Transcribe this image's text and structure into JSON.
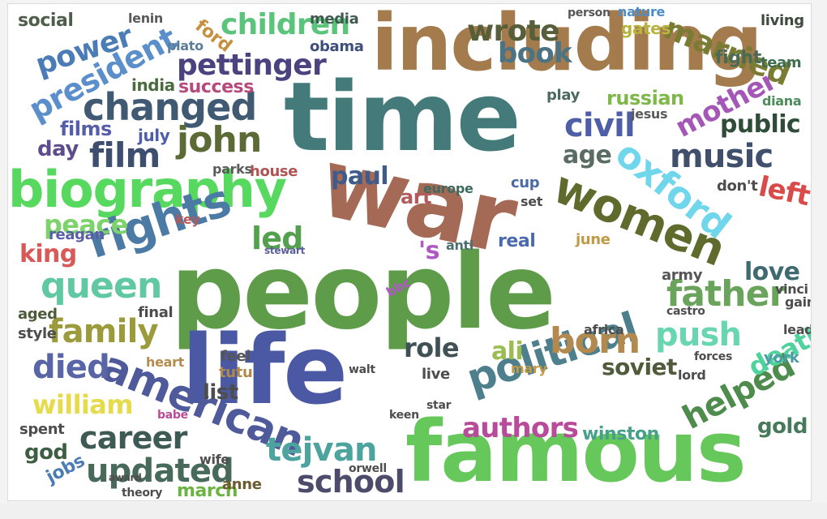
{
  "wordcloud": {
    "words": [
      "people",
      "famous",
      "war",
      "time",
      "life",
      "including",
      "biography",
      "american",
      "political",
      "women",
      "oxford",
      "rights",
      "born",
      "queen",
      "changed",
      "john",
      "pettinger",
      "father",
      "president",
      "push",
      "helped",
      "music",
      "mother",
      "civil",
      "married",
      "film",
      "updated",
      "family",
      "died",
      "william",
      "career",
      "authors",
      "tejvan",
      "school",
      "children",
      "wrote",
      "book",
      "power",
      "led",
      "love",
      "peace",
      "age",
      "public",
      "left",
      "death",
      "role",
      "ali",
      "soviet",
      "paul",
      "king",
      "films",
      "day",
      "social",
      "march",
      "jobs",
      "god",
      "winston",
      "gold",
      "list",
      "art",
      "russian",
      "success",
      "ford",
      "india",
      "obama",
      "lenin",
      "anne",
      "plato",
      "media",
      "gates",
      "fight",
      "team",
      "living",
      "nature",
      "person",
      "reagan",
      "key",
      "house",
      "stewart",
      "parks",
      "europe",
      "real",
      "june",
      "cup",
      "set",
      "anti",
      "'s",
      "don't",
      "army",
      "vinci",
      "diana",
      "jesus",
      "july",
      "play",
      "born2",
      "style",
      "final",
      "aged",
      "heart",
      "feel",
      "tutu",
      "africa",
      "castro",
      "york",
      "lead",
      "gain",
      "forces",
      "lord",
      "spent",
      "babe",
      "wife",
      "theory",
      "award",
      "orwell",
      "mary",
      "walt",
      "live",
      "star",
      "keen",
      "bbc"
    ]
  }
}
